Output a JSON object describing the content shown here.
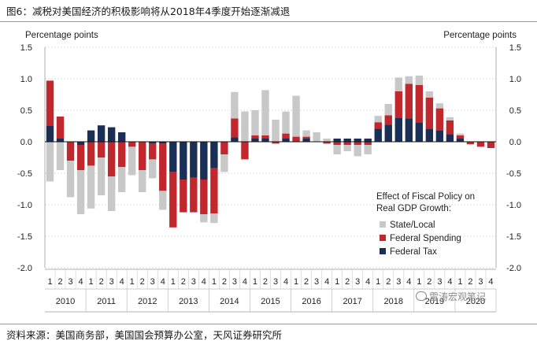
{
  "header": {
    "title": "图6：减税对美国经济的积极影响将从2018年4季度开始逐渐减退"
  },
  "footer": {
    "source": "资料来源：美国商务部，美国国会预算办公室，天风证券研究所"
  },
  "watermark": {
    "text": "雷涛宏观笔记"
  },
  "colors": {
    "state_local": "#c8c8c8",
    "federal_spending": "#c0282d",
    "federal_tax": "#1a2f55"
  },
  "chart_data": {
    "type": "bar",
    "stacked": true,
    "ylabel_left": "Percentage points",
    "ylabel_right": "Percentage points",
    "ylim": [
      -2.0,
      1.5
    ],
    "yticks": [
      "1.5",
      "1.0",
      "0.5",
      "0.0",
      "-0.5",
      "-1.0",
      "-1.5",
      "-2.0"
    ],
    "quarters": [
      "1",
      "2",
      "3",
      "4",
      "1",
      "2",
      "3",
      "4",
      "1",
      "2",
      "3",
      "4",
      "1",
      "2",
      "3",
      "4",
      "1",
      "2",
      "3",
      "4",
      "1",
      "2",
      "3",
      "4",
      "1",
      "2",
      "3",
      "4",
      "1",
      "2",
      "3",
      "4",
      "1",
      "2",
      "3",
      "4",
      "1",
      "2",
      "3",
      "4",
      "1",
      "2",
      "3",
      "4"
    ],
    "years": [
      "2010",
      "2011",
      "2012",
      "2013",
      "2014",
      "2015",
      "2016",
      "2017",
      "2018",
      "2019",
      "2020"
    ],
    "legend": {
      "title_line1": "Effect of Fiscal Policy on",
      "title_line2": "Real GDP Growth:",
      "items": [
        "State/Local",
        "Federal Spending",
        "Federal Tax"
      ]
    },
    "series": [
      {
        "name": "Federal Tax",
        "values": [
          0.25,
          0.05,
          0.0,
          -0.05,
          0.18,
          0.26,
          0.23,
          0.15,
          0.0,
          0.0,
          -0.03,
          -0.03,
          -0.48,
          -0.6,
          -0.57,
          -0.6,
          -0.42,
          0.0,
          0.07,
          0.0,
          0.05,
          0.05,
          0.0,
          0.05,
          0.0,
          0.05,
          0.0,
          0.0,
          0.05,
          0.05,
          0.05,
          0.05,
          0.21,
          0.27,
          0.38,
          0.37,
          0.3,
          0.2,
          0.18,
          0.12,
          0.05,
          0.0,
          0.0,
          0.0
        ]
      },
      {
        "name": "Federal Spending",
        "values": [
          0.72,
          0.35,
          -0.3,
          -0.4,
          -0.38,
          -0.25,
          -0.55,
          -0.4,
          -0.08,
          -0.45,
          -0.25,
          -0.75,
          -0.88,
          -0.52,
          -0.55,
          -0.55,
          -0.72,
          -0.2,
          0.3,
          -0.28,
          0.05,
          0.05,
          -0.03,
          0.08,
          0.08,
          0.03,
          0.0,
          -0.03,
          -0.05,
          -0.05,
          -0.05,
          -0.05,
          0.1,
          0.15,
          0.42,
          0.55,
          0.6,
          0.5,
          0.35,
          0.22,
          0.05,
          -0.04,
          -0.08,
          -0.1
        ]
      },
      {
        "name": "State/Local",
        "values": [
          -0.63,
          -0.45,
          -0.58,
          -0.7,
          -0.68,
          -0.6,
          -0.55,
          -0.4,
          -0.45,
          -0.35,
          -0.3,
          -0.3,
          0.0,
          0.0,
          0.0,
          -0.13,
          -0.15,
          -0.28,
          0.42,
          0.48,
          0.4,
          0.72,
          0.35,
          0.35,
          0.65,
          0.1,
          0.15,
          0.05,
          -0.15,
          -0.1,
          -0.18,
          -0.15,
          0.1,
          0.18,
          0.22,
          0.12,
          0.15,
          0.1,
          0.08,
          0.05,
          0.03,
          0.0,
          0.0,
          0.0
        ]
      }
    ]
  }
}
